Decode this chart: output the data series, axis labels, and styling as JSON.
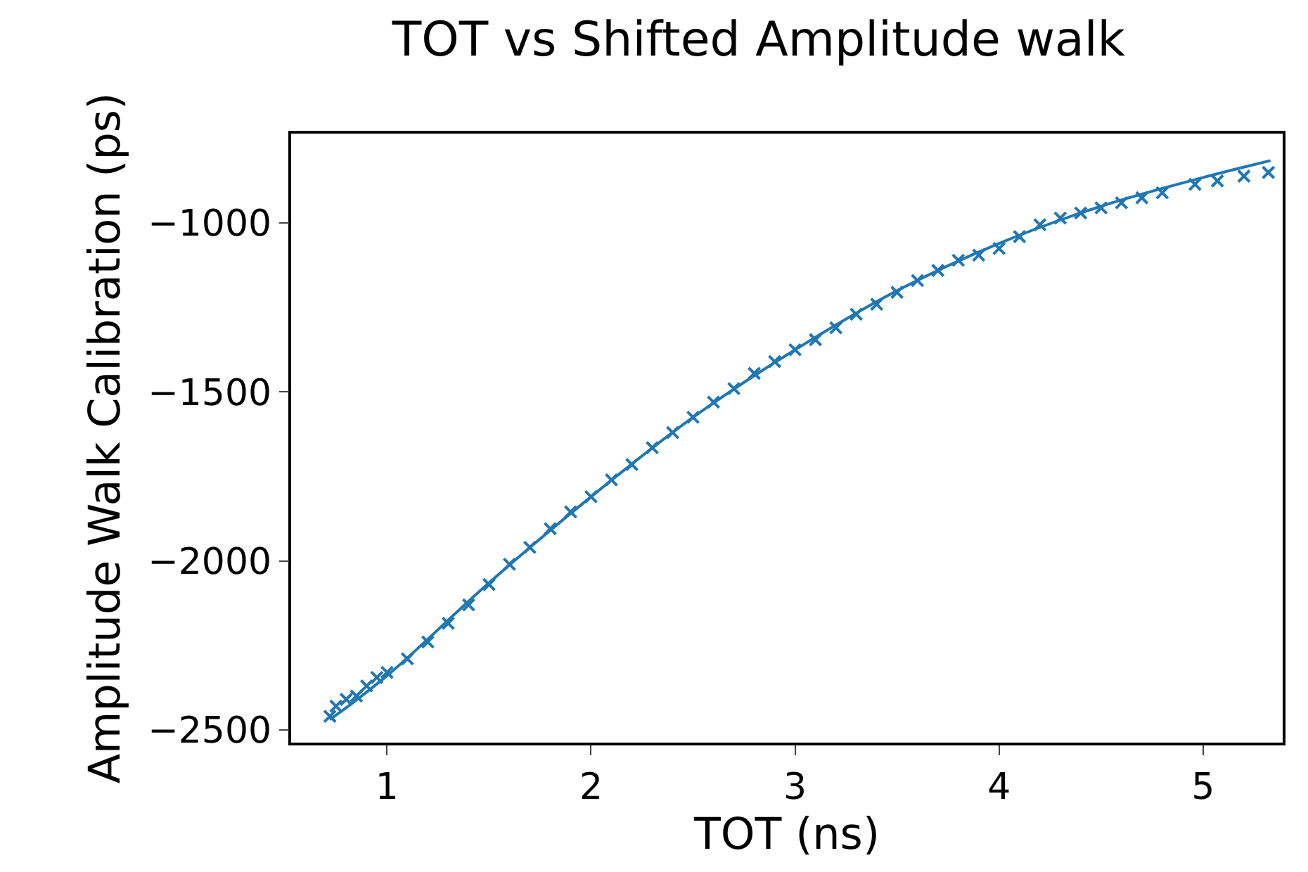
{
  "chart_data": {
    "type": "scatter",
    "title": "TOT vs Shifted Amplitude walk",
    "xlabel": "TOT (ns)",
    "ylabel": "Amplitude Walk Calibration (ps)",
    "xlim": [
      0.53,
      5.39
    ],
    "ylim": [
      -2538,
      -735
    ],
    "xticks": [
      1,
      2,
      3,
      4,
      5
    ],
    "yticks": [
      -2500,
      -2000,
      -1500,
      -1000
    ],
    "grid": false,
    "legend": false,
    "series": [
      {
        "marker": "cross",
        "color": "#1f77b4",
        "x": [
          0.72,
          0.75,
          0.8,
          0.85,
          0.9,
          0.95,
          1.0,
          1.1,
          1.2,
          1.3,
          1.4,
          1.5,
          1.6,
          1.7,
          1.8,
          1.9,
          2.0,
          2.1,
          2.2,
          2.3,
          2.4,
          2.5,
          2.6,
          2.7,
          2.8,
          2.9,
          3.0,
          3.1,
          3.2,
          3.3,
          3.4,
          3.5,
          3.6,
          3.7,
          3.8,
          3.9,
          4.0,
          4.1,
          4.2,
          4.3,
          4.4,
          4.5,
          4.6,
          4.7,
          4.8,
          4.96,
          5.07,
          5.2,
          5.32
        ],
        "values": [
          -2460,
          -2430,
          -2410,
          -2400,
          -2370,
          -2345,
          -2330,
          -2290,
          -2240,
          -2185,
          -2130,
          -2070,
          -2010,
          -1960,
          -1905,
          -1855,
          -1810,
          -1760,
          -1715,
          -1665,
          -1620,
          -1575,
          -1530,
          -1490,
          -1445,
          -1410,
          -1375,
          -1345,
          -1310,
          -1270,
          -1240,
          -1205,
          -1170,
          -1140,
          -1110,
          -1095,
          -1075,
          -1040,
          -1005,
          -985,
          -970,
          -955,
          -940,
          -925,
          -910,
          -885,
          -875,
          -861,
          -850
        ]
      },
      {
        "type": "line",
        "color": "#1f77b4",
        "x": [
          0.72,
          1,
          1.5,
          2,
          2.5,
          3,
          3.5,
          4,
          4.5,
          5,
          5.33
        ],
        "values": [
          -2470,
          -2340,
          -2065,
          -1810,
          -1575,
          -1375,
          -1200,
          -1060,
          -950,
          -865,
          -815
        ]
      }
    ]
  }
}
